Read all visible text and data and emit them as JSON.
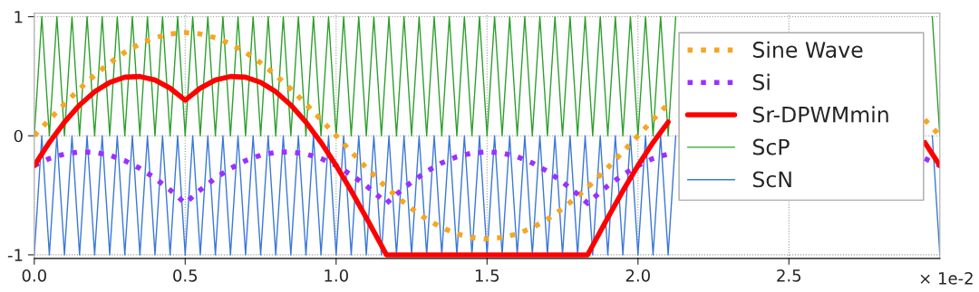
{
  "chart_data": {
    "type": "line",
    "x": [
      0,
      0.05,
      0.1,
      0.15,
      0.2,
      0.25,
      0.3,
      0.35,
      0.4,
      0.45,
      0.5,
      0.55,
      0.6,
      0.65,
      0.7,
      0.75,
      0.8,
      0.85,
      0.9,
      0.95,
      1.0,
      1.05,
      1.1,
      1.15,
      1.1667,
      1.2,
      1.25,
      1.3,
      1.35,
      1.4,
      1.45,
      1.5,
      1.55,
      1.6,
      1.65,
      1.7,
      1.75,
      1.8,
      1.8333,
      1.85,
      1.9,
      1.95,
      2.0,
      2.05,
      2.1,
      2.15,
      2.2,
      2.25,
      2.3,
      2.35,
      2.4,
      2.45,
      2.5,
      2.55,
      2.6,
      2.65,
      2.7,
      2.75,
      2.8,
      2.85,
      2.9,
      2.95,
      3.0
    ],
    "series": [
      {
        "name": "Sine Wave",
        "color": "#f5a623",
        "line_style": "dotted",
        "values": [
          0,
          0.135,
          0.268,
          0.393,
          0.509,
          0.612,
          0.701,
          0.772,
          0.824,
          0.855,
          0.866,
          0.855,
          0.824,
          0.772,
          0.701,
          0.612,
          0.509,
          0.393,
          0.268,
          0.135,
          0,
          -0.135,
          -0.268,
          -0.393,
          -0.433,
          -0.509,
          -0.612,
          -0.701,
          -0.772,
          -0.824,
          -0.855,
          -0.866,
          -0.855,
          -0.824,
          -0.772,
          -0.701,
          -0.612,
          -0.509,
          -0.433,
          -0.393,
          -0.268,
          -0.135,
          0,
          0.135,
          0.268,
          null,
          null,
          null,
          null,
          null,
          null,
          null,
          null,
          null,
          null,
          null,
          null,
          null,
          null,
          null,
          null,
          0.135,
          0
        ]
      },
      {
        "name": "Si",
        "color": "#9b30ff",
        "line_style": "dotted",
        "values": [
          -0.25,
          -0.191,
          -0.153,
          -0.135,
          -0.139,
          -0.163,
          -0.209,
          -0.274,
          -0.356,
          -0.455,
          -0.567,
          -0.455,
          -0.356,
          -0.274,
          -0.209,
          -0.163,
          -0.139,
          -0.135,
          -0.153,
          -0.191,
          -0.25,
          -0.327,
          -0.42,
          -0.528,
          -0.567,
          -0.491,
          -0.388,
          -0.299,
          -0.228,
          -0.176,
          -0.145,
          -0.134,
          -0.145,
          -0.176,
          -0.228,
          -0.299,
          -0.388,
          -0.491,
          -0.567,
          -0.528,
          -0.42,
          -0.327,
          -0.25,
          -0.191,
          -0.153,
          null,
          null,
          null,
          null,
          null,
          null,
          null,
          null,
          null,
          null,
          null,
          null,
          null,
          null,
          null,
          null,
          -0.191,
          -0.25
        ]
      },
      {
        "name": "Sr-DPWMmin",
        "color": "#ff0000",
        "line_style": "solid",
        "values": [
          -0.25,
          -0.056,
          0.115,
          0.258,
          0.37,
          0.449,
          0.492,
          0.498,
          0.468,
          0.4,
          0.299,
          0.4,
          0.468,
          0.498,
          0.492,
          0.449,
          0.37,
          0.258,
          0.115,
          -0.056,
          -0.25,
          -0.462,
          -0.688,
          -0.921,
          -1,
          -1,
          -1,
          -1,
          -1,
          -1,
          -1,
          -1,
          -1,
          -1,
          -1,
          -1,
          -1,
          -1,
          -1,
          -0.921,
          -0.688,
          -0.462,
          -0.25,
          -0.056,
          0.115,
          null,
          null,
          null,
          null,
          null,
          null,
          null,
          null,
          null,
          null,
          null,
          null,
          null,
          null,
          null,
          null,
          -0.056,
          -0.25
        ]
      },
      {
        "name": "ScP",
        "color": "#2ca02c",
        "line_style": "solid",
        "x": [
          0,
          0.025,
          0.05,
          0.075,
          0.1,
          0.125,
          0.15,
          0.175,
          0.2,
          0.225,
          0.25,
          0.275,
          0.3,
          0.325,
          0.35,
          0.375,
          0.4,
          0.425,
          0.45,
          0.475,
          0.5,
          0.525,
          0.55,
          0.575,
          0.6,
          0.625,
          0.65,
          0.675,
          0.7,
          0.725,
          0.75,
          0.775,
          0.8,
          0.825,
          0.85,
          0.875,
          0.9,
          0.925,
          0.95,
          0.975,
          1.0,
          1.025,
          1.05,
          1.075,
          1.1,
          1.125,
          1.15,
          1.175,
          1.2,
          1.225,
          1.25,
          1.275,
          1.3,
          1.325,
          1.35,
          1.375,
          1.4,
          1.425,
          1.45,
          1.475,
          1.5,
          1.525,
          1.55,
          1.575,
          1.6,
          1.625,
          1.65,
          1.675,
          1.7,
          1.725,
          1.75,
          1.775,
          1.8,
          1.825,
          1.85,
          1.875,
          1.9,
          1.925,
          1.95,
          1.975,
          2.0,
          2.025,
          2.05,
          2.075,
          2.1,
          2.125,
          2.15,
          2.175,
          2.2,
          2.225,
          2.25,
          2.275,
          2.3,
          2.325,
          2.35,
          2.375,
          2.4,
          2.425,
          2.45,
          2.475,
          2.5,
          2.525,
          2.55,
          2.575,
          2.6,
          2.625,
          2.65,
          2.675,
          2.7,
          2.725,
          2.75,
          2.775,
          2.8,
          2.825,
          2.85,
          2.875,
          2.9,
          2.925,
          2.95,
          2.975,
          3.0
        ],
        "values": [
          0,
          1,
          0,
          1,
          0,
          1,
          0,
          1,
          0,
          1,
          0,
          1,
          0,
          1,
          0,
          1,
          0,
          1,
          0,
          1,
          0,
          1,
          0,
          1,
          0,
          1,
          0,
          1,
          0,
          1,
          0,
          1,
          0,
          1,
          0,
          1,
          0,
          1,
          0,
          1,
          0,
          1,
          0,
          1,
          0,
          1,
          0,
          1,
          0,
          1,
          0,
          1,
          0,
          1,
          0,
          1,
          0,
          1,
          0,
          1,
          0,
          1,
          0,
          1,
          0,
          1,
          0,
          1,
          0,
          1,
          0,
          1,
          0,
          1,
          0,
          1,
          0,
          1,
          0,
          1,
          0,
          1,
          0,
          1,
          0,
          1,
          null,
          null,
          null,
          null,
          null,
          null,
          null,
          null,
          null,
          null,
          null,
          null,
          null,
          null,
          null,
          null,
          null,
          null,
          null,
          null,
          null,
          null,
          null,
          null,
          null,
          null,
          null,
          null,
          null,
          null,
          null,
          null,
          null,
          1,
          0
        ]
      },
      {
        "name": "ScN",
        "color": "#3a78d8",
        "line_style": "solid",
        "x": [
          0,
          0.025,
          0.05,
          0.075,
          0.1,
          0.125,
          0.15,
          0.175,
          0.2,
          0.225,
          0.25,
          0.275,
          0.3,
          0.325,
          0.35,
          0.375,
          0.4,
          0.425,
          0.45,
          0.475,
          0.5,
          0.525,
          0.55,
          0.575,
          0.6,
          0.625,
          0.65,
          0.675,
          0.7,
          0.725,
          0.75,
          0.775,
          0.8,
          0.825,
          0.85,
          0.875,
          0.9,
          0.925,
          0.95,
          0.975,
          1.0,
          1.025,
          1.05,
          1.075,
          1.1,
          1.125,
          1.15,
          1.175,
          1.2,
          1.225,
          1.25,
          1.275,
          1.3,
          1.325,
          1.35,
          1.375,
          1.4,
          1.425,
          1.45,
          1.475,
          1.5,
          1.525,
          1.55,
          1.575,
          1.6,
          1.625,
          1.65,
          1.675,
          1.7,
          1.725,
          1.75,
          1.775,
          1.8,
          1.825,
          1.85,
          1.875,
          1.9,
          1.925,
          1.95,
          1.975,
          2.0,
          2.025,
          2.05,
          2.075,
          2.1,
          2.125,
          2.15,
          2.175,
          2.2,
          2.225,
          2.25,
          2.275,
          2.3,
          2.325,
          2.35,
          2.375,
          2.4,
          2.425,
          2.45,
          2.475,
          2.5,
          2.525,
          2.55,
          2.575,
          2.6,
          2.625,
          2.65,
          2.675,
          2.7,
          2.725,
          2.75,
          2.775,
          2.8,
          2.825,
          2.85,
          2.875,
          2.9,
          2.925,
          2.95,
          2.975,
          3.0
        ],
        "values": [
          -1,
          0,
          -1,
          0,
          -1,
          0,
          -1,
          0,
          -1,
          0,
          -1,
          0,
          -1,
          0,
          -1,
          0,
          -1,
          0,
          -1,
          0,
          -1,
          0,
          -1,
          0,
          -1,
          0,
          -1,
          0,
          -1,
          0,
          -1,
          0,
          -1,
          0,
          -1,
          0,
          -1,
          0,
          -1,
          0,
          -1,
          0,
          -1,
          0,
          -1,
          0,
          -1,
          0,
          -1,
          0,
          -1,
          0,
          -1,
          0,
          -1,
          0,
          -1,
          0,
          -1,
          0,
          -1,
          0,
          -1,
          0,
          -1,
          0,
          -1,
          0,
          -1,
          0,
          -1,
          0,
          -1,
          0,
          -1,
          0,
          -1,
          0,
          -1,
          0,
          -1,
          0,
          -1,
          0,
          -1,
          0,
          null,
          null,
          null,
          null,
          null,
          null,
          null,
          null,
          null,
          null,
          null,
          null,
          null,
          null,
          null,
          null,
          null,
          null,
          null,
          null,
          null,
          null,
          null,
          null,
          null,
          null,
          null,
          null,
          null,
          null,
          null,
          null,
          null,
          0,
          -1
        ]
      }
    ],
    "xlim": [
      0,
      3.0
    ],
    "xticks": [
      {
        "value": 0,
        "label": "0.0"
      },
      {
        "value": 0.5,
        "label": "0.5"
      },
      {
        "value": 1.0,
        "label": "1.0"
      },
      {
        "value": 1.5,
        "label": "1.5"
      },
      {
        "value": 2.0,
        "label": "2.0"
      },
      {
        "value": 2.5,
        "label": "2.5"
      }
    ],
    "ylim": [
      -1.03,
      1.03
    ],
    "yticks": [
      -1,
      0,
      1
    ],
    "grid": true,
    "legend": "right",
    "annotations": [
      "× 1e-2"
    ]
  }
}
